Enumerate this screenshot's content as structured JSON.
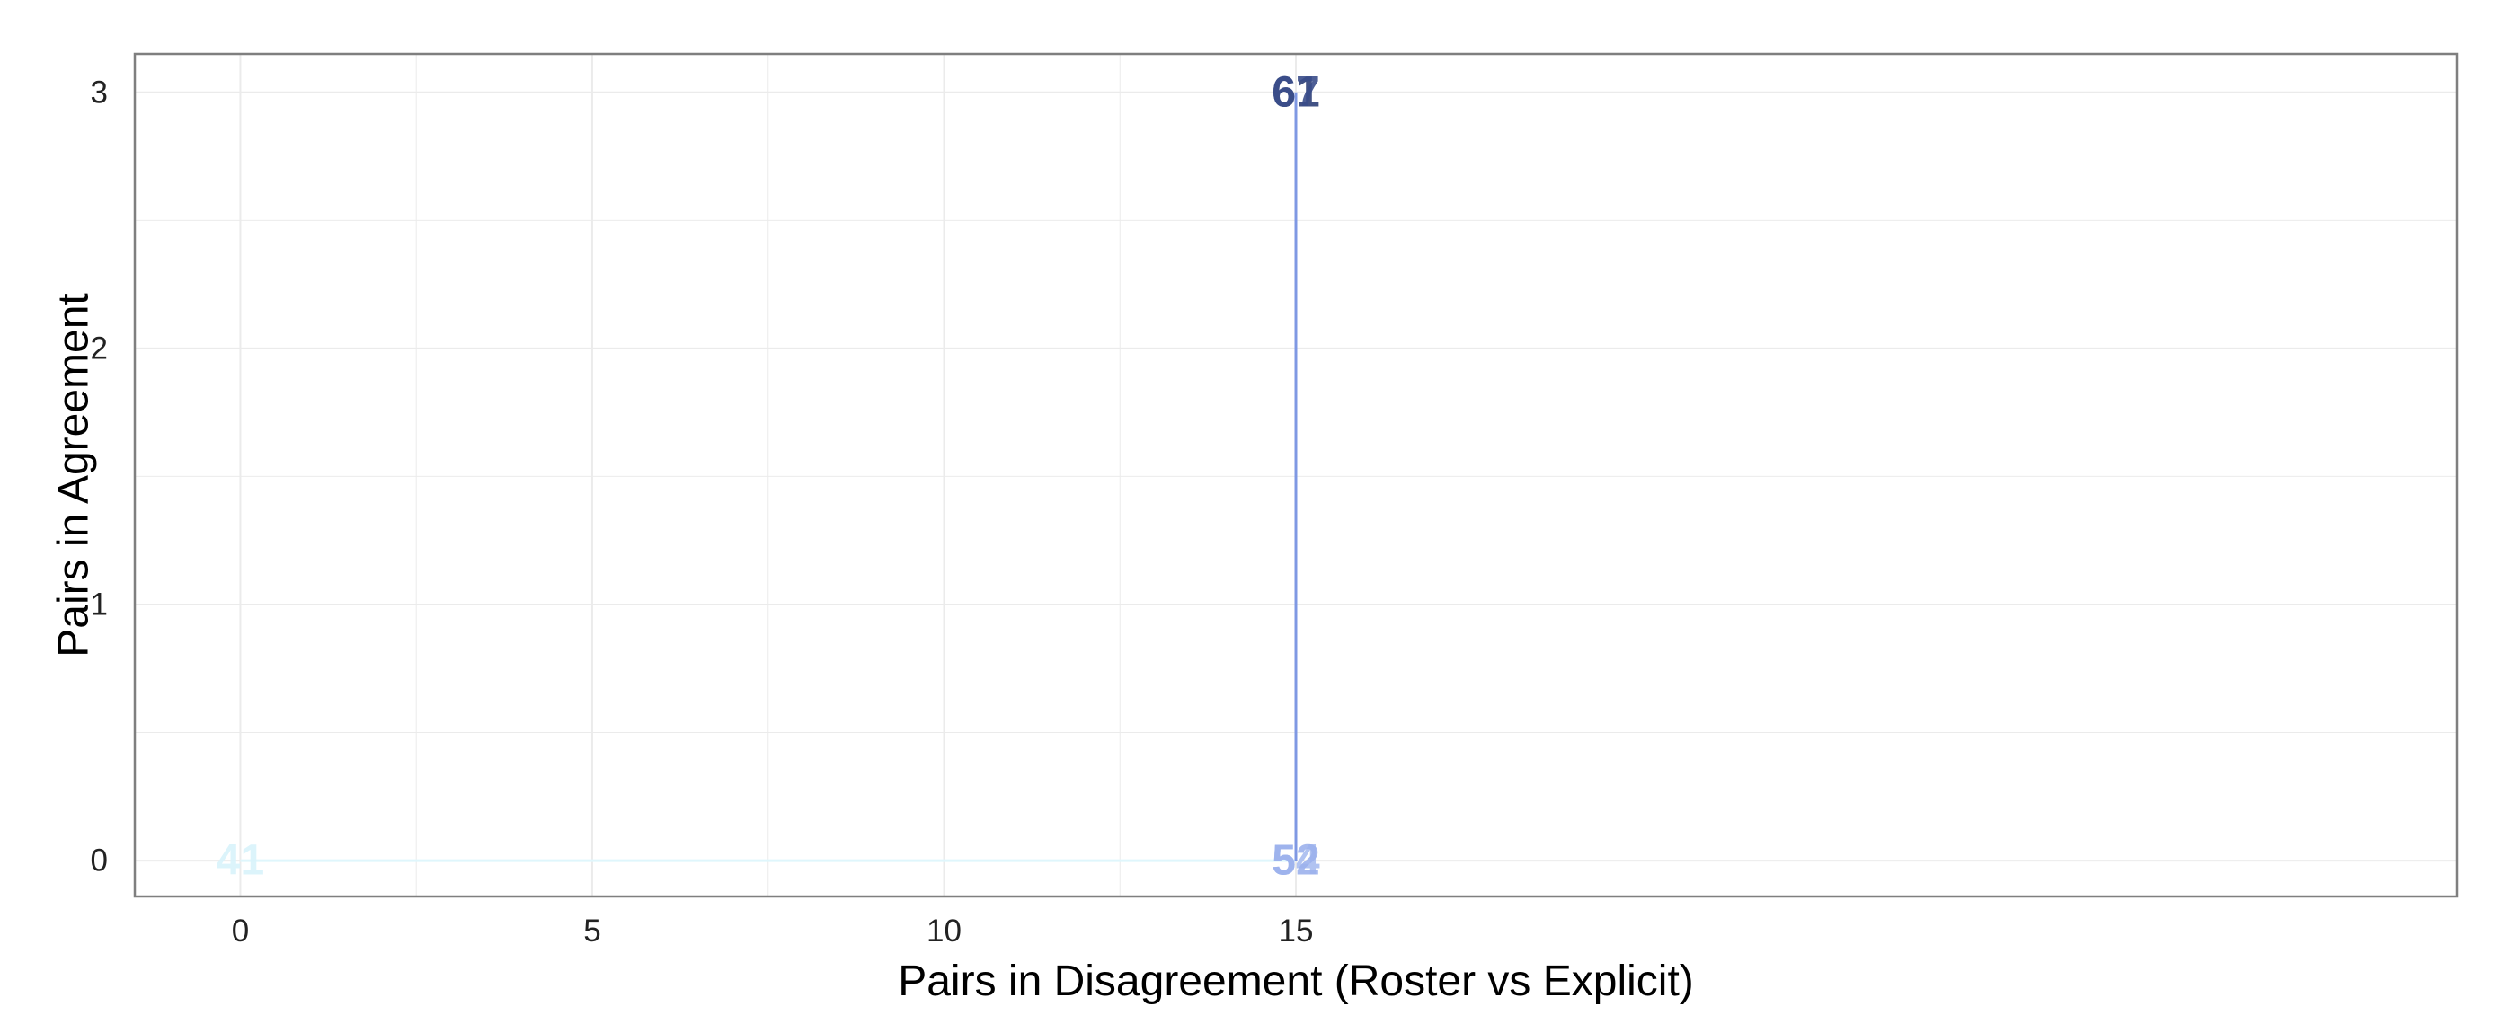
{
  "chart_data": {
    "type": "scatter",
    "title": "",
    "xlabel": "Pairs in Disagreement (Roster vs Explicit)",
    "ylabel": "Pairs in Agreement",
    "xlim": [
      -1.5,
      31.5
    ],
    "ylim": [
      -0.14,
      3.15
    ],
    "x_ticks": [
      0,
      5,
      10,
      15
    ],
    "y_ticks": [
      0,
      1,
      2,
      3
    ],
    "x_tick_labels": [
      "0",
      "5",
      "10",
      "15"
    ],
    "y_tick_labels": [
      "0",
      "1",
      "2",
      "3"
    ],
    "grid": true,
    "legend": "none",
    "colors": {
      "cyan": "#d8f3fb",
      "light_blue": "#a9bdf0",
      "medium_blue": "#7f98e3",
      "dark_blue": "#2e3f78",
      "grid": "#ebebeb",
      "panel_border": "#7f7f7f"
    },
    "lines": [
      {
        "x": [
          0,
          15
        ],
        "y": [
          0,
          0
        ],
        "color": "#dff6fc"
      },
      {
        "x": [
          15,
          15
        ],
        "y": [
          0,
          3
        ],
        "color": "#7f98e3"
      }
    ],
    "points": [
      {
        "x": 0,
        "y": 0,
        "label": "41",
        "color": "#d8f3fb"
      },
      {
        "x": 15,
        "y": 0,
        "label": "54",
        "color": "#a9bdf0"
      },
      {
        "x": 15,
        "y": 0,
        "label": "52",
        "color": "#9cb1ec"
      },
      {
        "x": 15,
        "y": 3,
        "label": "61",
        "color": "#2e3f78"
      },
      {
        "x": 15,
        "y": 3,
        "label": "67",
        "color": "#3a4c8a"
      }
    ]
  }
}
